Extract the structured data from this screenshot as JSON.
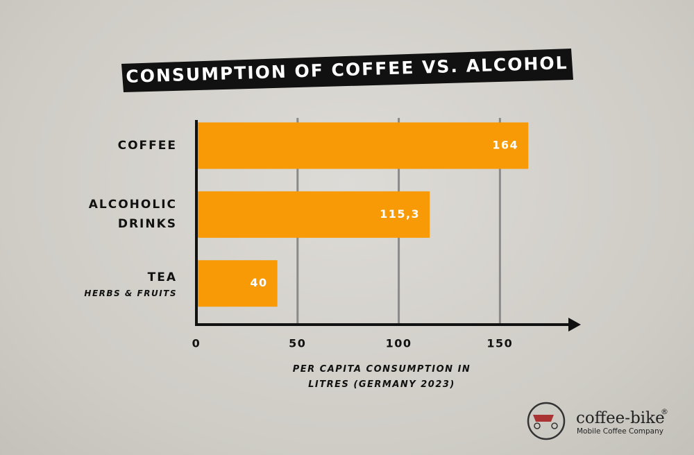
{
  "chart_data": {
    "type": "bar",
    "orientation": "horizontal",
    "title": "CONSUMPTION OF COFFEE VS. ALCOHOL",
    "categories": [
      "COFFEE",
      "ALCOHOLIC DRINKS",
      "TEA"
    ],
    "category_subtitles": [
      null,
      null,
      "HERBS & FRUITS"
    ],
    "values": [
      164,
      115.3,
      40
    ],
    "value_labels": [
      "164",
      "115,3",
      "40"
    ],
    "color": "#f79a05",
    "xlim": [
      0,
      190
    ],
    "xticks": [
      0,
      50,
      100,
      150
    ],
    "grid": true,
    "x_label": "PER CAPITA CONSUMPTION IN LITRES (GERMANY 2023)"
  },
  "logo": {
    "name": "coffee-bike",
    "mark": "®",
    "tagline": "Mobile Coffee Company"
  }
}
